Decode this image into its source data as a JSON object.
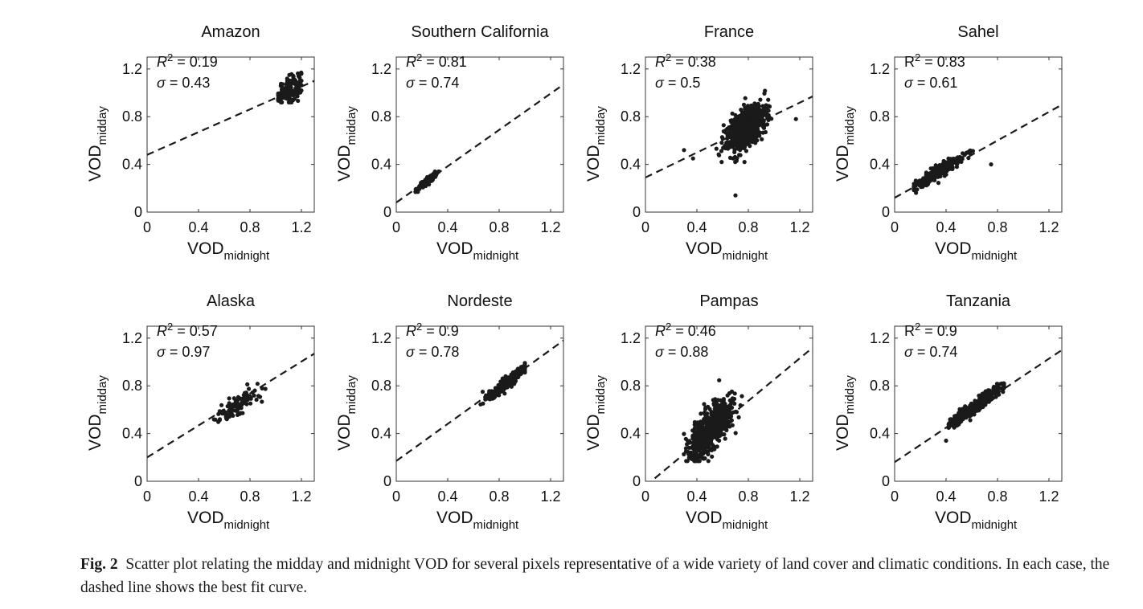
{
  "axes_common": {
    "xlabel": "VOD",
    "xlabel_sub": "midnight",
    "ylabel": "VOD",
    "ylabel_sub": "midday",
    "xticks": [
      "0",
      "0.4",
      "0.8",
      "1.2"
    ],
    "yticks": [
      "0",
      "0.4",
      "0.8",
      "1.2"
    ],
    "xlim": [
      0,
      1.3
    ],
    "ylim": [
      0,
      1.3
    ]
  },
  "caption": {
    "label": "Fig. 2",
    "text": "Scatter plot relating the midday and midnight VOD for several pixels representative of a wide variety of land cover and climatic conditions. In each case, the dashed line shows the best fit curve."
  },
  "colors": {
    "points": "#1a1a1a",
    "fit_line": "#1a1a1a",
    "axes": "#333333"
  },
  "chart_data": [
    {
      "type": "scatter",
      "title": "Amazon",
      "r2_symbol": "R",
      "r2": "0.19",
      "sigma_symbol": "σ",
      "sigma": "0.43",
      "r2_italic": true,
      "cluster": {
        "x_center": 1.1,
        "y_center": 1.03,
        "x_spread": 0.05,
        "y_spread": 0.06,
        "x_range": [
          1.02,
          1.2
        ],
        "y_range": [
          0.92,
          1.24
        ],
        "n": 170
      },
      "fit_line": {
        "x": [
          0,
          1.3
        ],
        "y": [
          0.48,
          1.1
        ]
      },
      "xlim": [
        0,
        1.3
      ],
      "ylim": [
        0,
        1.3
      ]
    },
    {
      "type": "scatter",
      "title": "Southern California",
      "r2_symbol": "R",
      "r2": "0.81",
      "sigma_symbol": "σ",
      "sigma": "0.74",
      "r2_italic": true,
      "cluster": {
        "x_center": 0.24,
        "y_center": 0.26,
        "x_spread": 0.04,
        "y_spread": 0.035,
        "x_range": [
          0.15,
          0.33
        ],
        "y_range": [
          0.17,
          0.34
        ],
        "n": 150,
        "corr": 0.9
      },
      "fit_line": {
        "x": [
          0,
          1.3
        ],
        "y": [
          0.08,
          1.07
        ]
      },
      "xlim": [
        0,
        1.3
      ],
      "ylim": [
        0,
        1.3
      ]
    },
    {
      "type": "scatter",
      "title": "France",
      "r2_symbol": "R",
      "r2": "0.38",
      "sigma_symbol": "σ",
      "sigma": "0.5",
      "r2_italic": true,
      "cluster": {
        "x_center": 0.78,
        "y_center": 0.7,
        "x_spread": 0.08,
        "y_spread": 0.1,
        "x_range": [
          0.55,
          1.0
        ],
        "y_range": [
          0.42,
          1.04
        ],
        "n": 650,
        "corr": 0.6
      },
      "outliers": [
        {
          "x": 0.7,
          "y": 0.14
        },
        {
          "x": 1.17,
          "y": 0.78
        },
        {
          "x": 0.3,
          "y": 0.52
        },
        {
          "x": 0.37,
          "y": 0.45
        }
      ],
      "fit_line": {
        "x": [
          0,
          1.3
        ],
        "y": [
          0.29,
          0.97
        ]
      },
      "xlim": [
        0,
        1.3
      ],
      "ylim": [
        0,
        1.3
      ]
    },
    {
      "type": "scatter",
      "title": "Sahel",
      "r2_symbol": "R",
      "r2": "0.83",
      "sigma_symbol": "σ",
      "sigma": "0.61",
      "r2_italic": false,
      "cluster": {
        "x_center": 0.33,
        "y_center": 0.33,
        "x_spread": 0.1,
        "y_spread": 0.07,
        "x_range": [
          0.15,
          0.62
        ],
        "y_range": [
          0.15,
          0.52
        ],
        "n": 260,
        "corr": 0.92
      },
      "outliers": [
        {
          "x": 0.75,
          "y": 0.4
        }
      ],
      "fit_line": {
        "x": [
          0,
          1.3
        ],
        "y": [
          0.12,
          0.9
        ]
      },
      "xlim": [
        0,
        1.3
      ],
      "ylim": [
        0,
        1.3
      ]
    },
    {
      "type": "scatter",
      "title": "Alaska",
      "r2_symbol": "R",
      "r2": "0.57",
      "sigma_symbol": "σ",
      "sigma": "0.97",
      "r2_italic": true,
      "cluster": {
        "x_center": 0.7,
        "y_center": 0.64,
        "x_spread": 0.08,
        "y_spread": 0.07,
        "x_range": [
          0.5,
          0.92
        ],
        "y_range": [
          0.45,
          0.87
        ],
        "n": 110,
        "corr": 0.75
      },
      "fit_line": {
        "x": [
          0,
          1.3
        ],
        "y": [
          0.2,
          1.07
        ]
      },
      "xlim": [
        0,
        1.3
      ],
      "ylim": [
        0,
        1.3
      ]
    },
    {
      "type": "scatter",
      "title": "Nordeste",
      "r2_symbol": "R",
      "r2": "0.9",
      "sigma_symbol": "σ",
      "sigma": "0.78",
      "r2_italic": true,
      "cluster": {
        "x_center": 0.85,
        "y_center": 0.82,
        "x_spread": 0.08,
        "y_spread": 0.07,
        "x_range": [
          0.65,
          1.0
        ],
        "y_range": [
          0.64,
          0.99
        ],
        "n": 300,
        "corr": 0.95
      },
      "fit_line": {
        "x": [
          0,
          1.3
        ],
        "y": [
          0.17,
          1.18
        ]
      },
      "xlim": [
        0,
        1.3
      ],
      "ylim": [
        0,
        1.3
      ]
    },
    {
      "type": "scatter",
      "title": "Pampas",
      "r2_symbol": "R",
      "r2": "0.46",
      "sigma_symbol": "σ",
      "sigma": "0.88",
      "r2_italic": true,
      "cluster": {
        "x_center": 0.5,
        "y_center": 0.43,
        "x_spread": 0.08,
        "y_spread": 0.12,
        "x_range": [
          0.22,
          0.75
        ],
        "y_range": [
          0.17,
          0.85
        ],
        "n": 650,
        "corr": 0.7
      },
      "fit_line": {
        "x": [
          0,
          1.3
        ],
        "y": [
          -0.04,
          1.12
        ]
      },
      "xlim": [
        0,
        1.3
      ],
      "ylim": [
        0,
        1.3
      ]
    },
    {
      "type": "scatter",
      "title": "Tanzania",
      "r2_symbol": "R",
      "r2": "0.9",
      "sigma_symbol": "σ",
      "sigma": "0.74",
      "r2_italic": false,
      "cluster": {
        "x_center": 0.63,
        "y_center": 0.63,
        "x_spread": 0.11,
        "y_spread": 0.09,
        "x_range": [
          0.42,
          0.85
        ],
        "y_range": [
          0.45,
          0.82
        ],
        "n": 350,
        "corr": 0.95
      },
      "outliers": [
        {
          "x": 0.4,
          "y": 0.34
        }
      ],
      "fit_line": {
        "x": [
          0,
          1.3
        ],
        "y": [
          0.16,
          1.1
        ]
      },
      "xlim": [
        0,
        1.3
      ],
      "ylim": [
        0,
        1.3
      ]
    }
  ]
}
